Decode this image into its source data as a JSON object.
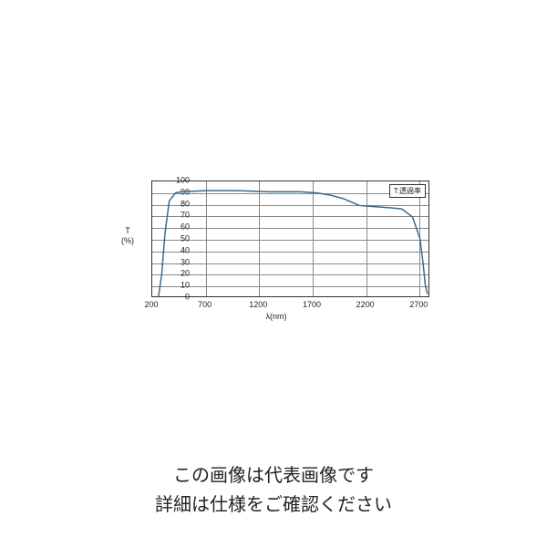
{
  "chart": {
    "type": "line",
    "xlabel": "λ(nm)",
    "ylabel_line1": "T",
    "ylabel_line2": "(%)",
    "legend_text": "T:透過率",
    "xlim": [
      200,
      2800
    ],
    "ylim": [
      0,
      100
    ],
    "x_ticks": [
      200,
      700,
      1200,
      1700,
      2200,
      2700
    ],
    "y_ticks": [
      0,
      10,
      20,
      30,
      40,
      50,
      60,
      70,
      80,
      90,
      100
    ],
    "x_tick_step": 500,
    "y_tick_step": 10,
    "grid_color": "#888888",
    "border_color": "#333333",
    "background_color": "#ffffff",
    "line_color": "#3a6a8a",
    "line_width": 1.5,
    "label_fontsize": 9,
    "legend_fontsize": 8,
    "data_points": [
      [
        260,
        0
      ],
      [
        290,
        20
      ],
      [
        320,
        55
      ],
      [
        360,
        83
      ],
      [
        420,
        90
      ],
      [
        480,
        91
      ],
      [
        700,
        92
      ],
      [
        1000,
        92
      ],
      [
        1300,
        91
      ],
      [
        1600,
        91
      ],
      [
        1750,
        90
      ],
      [
        1880,
        88
      ],
      [
        2000,
        85
      ],
      [
        2150,
        79
      ],
      [
        2300,
        78
      ],
      [
        2450,
        77
      ],
      [
        2550,
        76
      ],
      [
        2650,
        69
      ],
      [
        2720,
        50
      ],
      [
        2750,
        28
      ],
      [
        2770,
        10
      ],
      [
        2790,
        2
      ]
    ]
  },
  "caption": {
    "line1": "この画像は代表画像です",
    "line2": "詳細は仕様をご確認ください"
  }
}
